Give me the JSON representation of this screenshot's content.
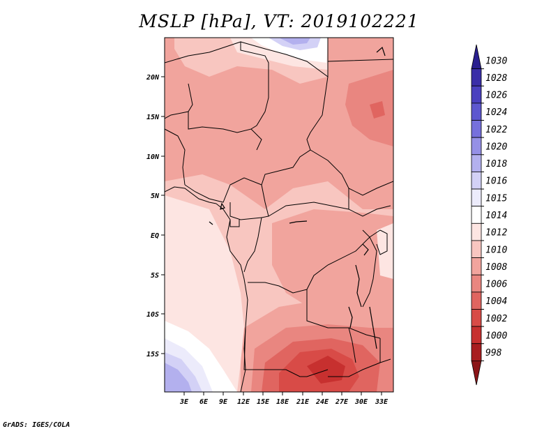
{
  "title": "MSLP [hPa], VT: 2019102221",
  "credit": "GrADS: IGES/COLA",
  "map": {
    "variable": "MSLP",
    "units": "hPa",
    "valid_time": "2019102221",
    "lat_labels": [
      "20N",
      "15N",
      "10N",
      "5N",
      "EQ",
      "5S",
      "10S",
      "15S"
    ],
    "lon_labels": [
      "3E",
      "6E",
      "9E",
      "12E",
      "15E",
      "18E",
      "21E",
      "24E",
      "27E",
      "30E",
      "33E"
    ]
  },
  "colorbar": {
    "labels": [
      "1030",
      "1028",
      "1026",
      "1024",
      "1022",
      "1020",
      "1018",
      "1016",
      "1015",
      "1014",
      "1012",
      "1010",
      "1008",
      "1006",
      "1004",
      "1002",
      "1000",
      "998"
    ],
    "colors": [
      "#2a1f8f",
      "#3a2ea8",
      "#4a40bf",
      "#5d57cf",
      "#7670dc",
      "#9590e6",
      "#b3b0ee",
      "#d3d1f6",
      "#ecebfb",
      "#ffffff",
      "#fde5e2",
      "#f8c6c0",
      "#f1a49d",
      "#e98680",
      "#e06560",
      "#d84b47",
      "#c7302f",
      "#a81d1f",
      "#8b1518"
    ]
  }
}
